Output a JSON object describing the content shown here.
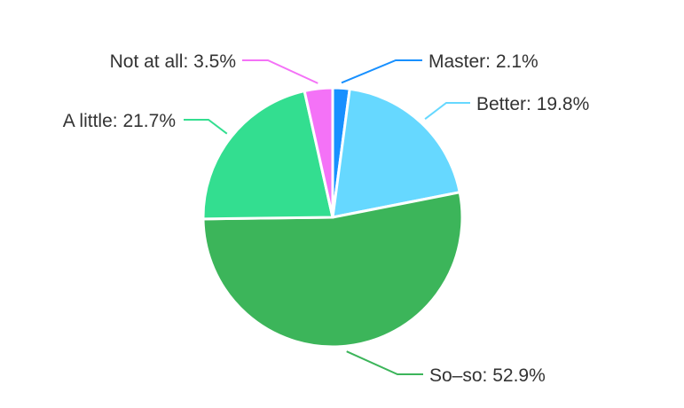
{
  "chart_data": {
    "type": "pie",
    "title": "",
    "slices": [
      {
        "label": "Master",
        "value": 2.1,
        "display": "Master: 2.1%",
        "color": "#1890ff"
      },
      {
        "label": "Better",
        "value": 19.8,
        "display": "Better: 19.8%",
        "color": "#66d8ff"
      },
      {
        "label": "So-so",
        "value": 52.9,
        "display": "So–so: 52.9%",
        "color": "#3cb55a"
      },
      {
        "label": "A little",
        "value": 21.7,
        "display": "A little: 21.7%",
        "color": "#33de90"
      },
      {
        "label": "Not at all",
        "value": 3.5,
        "display": "Not at all: 3.5%",
        "color": "#f472f7"
      }
    ],
    "start_angle": "12 o'clock",
    "direction": "clockwise",
    "legend": "none",
    "labels": "outside with leader lines"
  }
}
